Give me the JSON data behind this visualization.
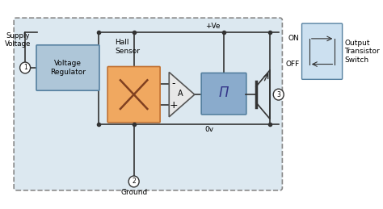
{
  "main_box_color": "#dce8f0",
  "voltage_reg_color": "#aec6d8",
  "hall_sensor_color": "#f0a860",
  "schmitt_trigger_color": "#8aabcc",
  "wire_color": "#333333",
  "text_color": "#000000",
  "labels": {
    "supply_voltage": "Supply\nVoltage",
    "voltage_regulator": "Voltage\nRegulator",
    "hall_sensor": "Hall\nSensor",
    "amplifier": "A",
    "schmitt": "Π",
    "plus_ve": "+Ve",
    "zero_v": "0v",
    "ground": "Ground",
    "output_transistor": "Output\nTransistor\nSwitch",
    "on": "ON",
    "off": "OFF"
  }
}
